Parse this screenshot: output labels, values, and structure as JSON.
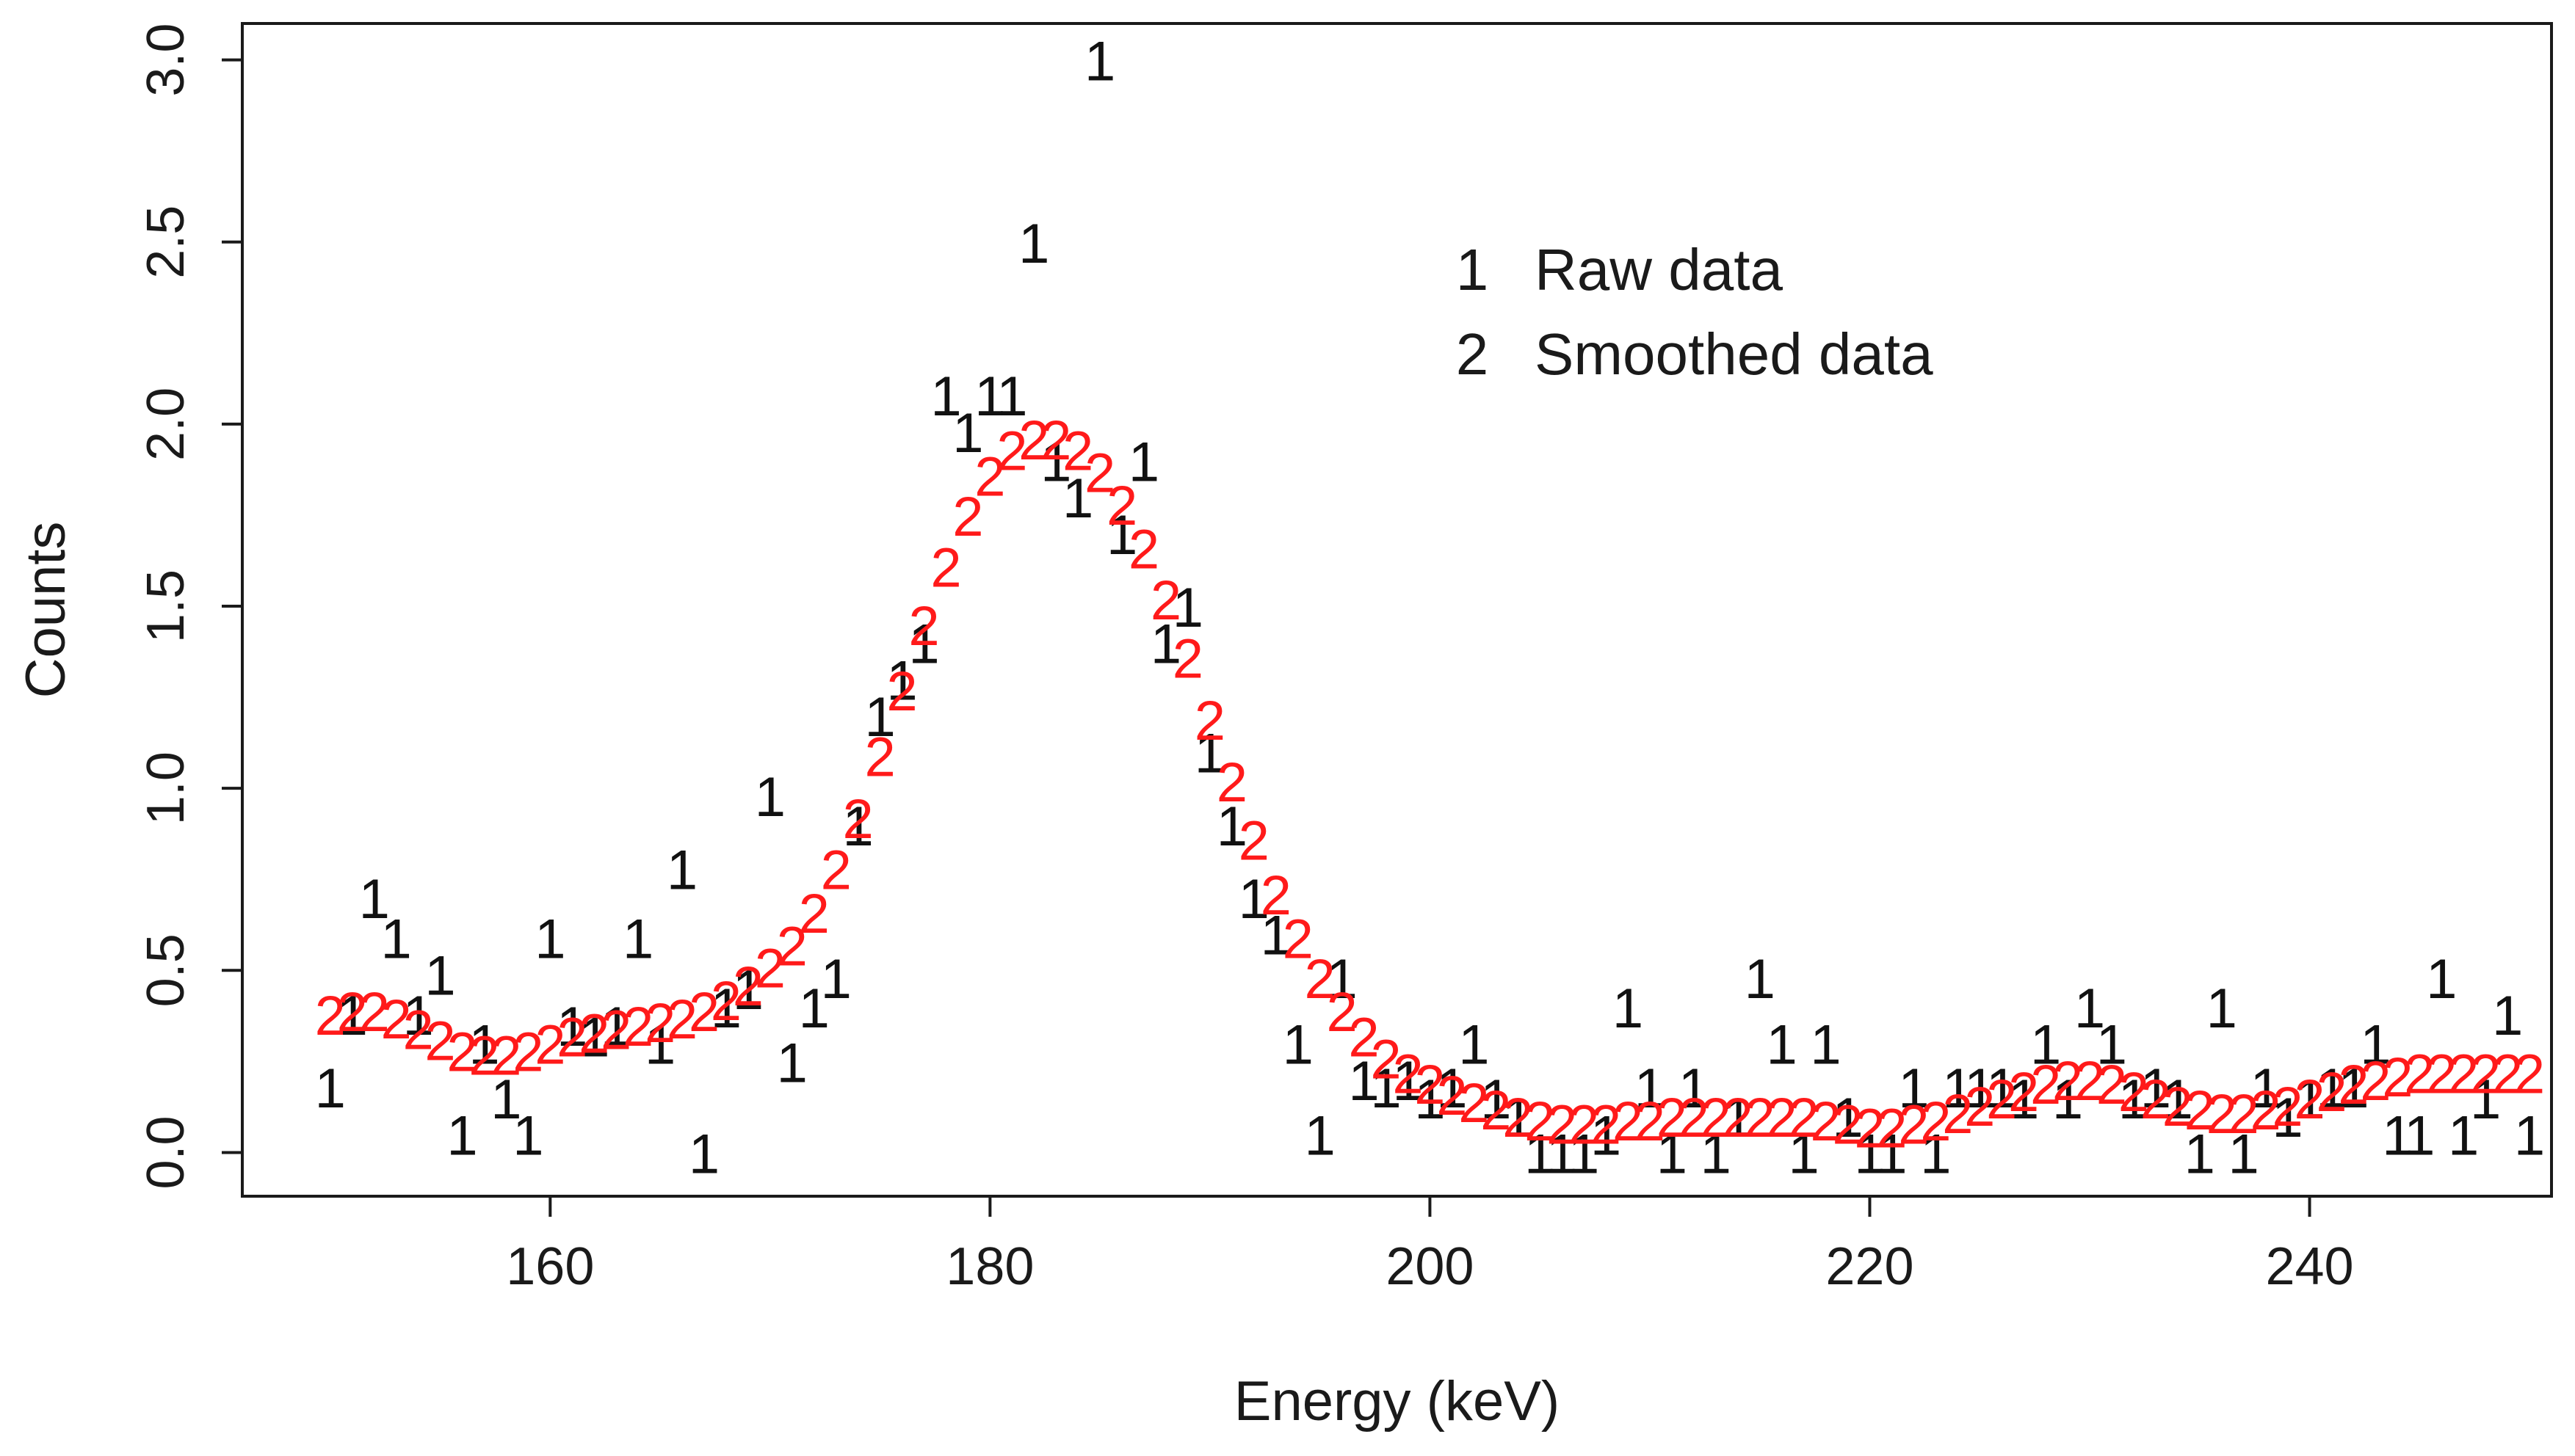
{
  "chart_data": {
    "type": "scatter",
    "title": "",
    "xlabel": "Energy (keV)",
    "ylabel": "Counts",
    "xlim": [
      146,
      251
    ],
    "ylim": [
      -0.12,
      3.1
    ],
    "xticks": [
      160,
      180,
      200,
      220,
      240
    ],
    "yticks": [
      0.0,
      0.5,
      1.0,
      1.5,
      2.0,
      2.5,
      3.0
    ],
    "grid": false,
    "legend_position": "top-right",
    "colors": {
      "raw": "#111111",
      "smoothed": "#ff1a1a",
      "axis": "#1a1a1a"
    },
    "series": [
      {
        "name": "Raw data",
        "symbol": "1",
        "x": [
          150,
          151,
          152,
          153,
          154,
          155,
          156,
          157,
          158,
          159,
          160,
          161,
          162,
          163,
          164,
          165,
          166,
          167,
          168,
          169,
          170,
          171,
          172,
          173,
          174,
          175,
          176,
          177,
          178,
          179,
          180,
          181,
          182,
          183,
          184,
          185,
          186,
          187,
          188,
          189,
          190,
          191,
          192,
          193,
          194,
          195,
          196,
          197,
          198,
          199,
          200,
          201,
          202,
          203,
          204,
          205,
          206,
          207,
          208,
          209,
          210,
          211,
          212,
          213,
          214,
          215,
          216,
          217,
          218,
          219,
          220,
          221,
          222,
          223,
          224,
          225,
          226,
          227,
          228,
          229,
          230,
          231,
          232,
          233,
          234,
          235,
          236,
          237,
          238,
          239,
          240,
          241,
          242,
          243,
          244,
          245,
          246,
          247,
          248,
          249,
          250
        ],
        "y": [
          0.18,
          0.38,
          0.7,
          0.59,
          0.38,
          0.49,
          0.05,
          0.3,
          0.15,
          0.05,
          0.59,
          0.35,
          0.32,
          0.35,
          0.59,
          0.3,
          0.78,
          0.0,
          0.4,
          0.45,
          0.98,
          0.25,
          0.4,
          0.48,
          0.9,
          1.2,
          1.3,
          1.4,
          2.08,
          1.98,
          2.08,
          2.08,
          2.5,
          1.9,
          1.8,
          3.0,
          1.7,
          1.9,
          1.4,
          1.5,
          1.1,
          0.9,
          0.7,
          0.6,
          0.3,
          0.05,
          0.48,
          0.2,
          0.18,
          0.2,
          0.15,
          0.18,
          0.3,
          0.15,
          0.1,
          0.0,
          0.0,
          0.0,
          0.05,
          0.4,
          0.18,
          0.0,
          0.18,
          0.0,
          0.1,
          0.48,
          0.3,
          0.0,
          0.3,
          0.1,
          0.0,
          0.0,
          0.18,
          0.0,
          0.18,
          0.18,
          0.18,
          0.15,
          0.3,
          0.15,
          0.4,
          0.3,
          0.15,
          0.18,
          0.15,
          0.0,
          0.4,
          0.0,
          0.18,
          0.1,
          0.15,
          0.18,
          0.18,
          0.3,
          0.05,
          0.05,
          0.48,
          0.05,
          0.15,
          0.38,
          0.05
        ]
      },
      {
        "name": "Smoothed data",
        "symbol": "2",
        "x": [
          150,
          151,
          152,
          153,
          154,
          155,
          156,
          157,
          158,
          159,
          160,
          161,
          162,
          163,
          164,
          165,
          166,
          167,
          168,
          169,
          170,
          171,
          172,
          173,
          174,
          175,
          176,
          177,
          178,
          179,
          180,
          181,
          182,
          183,
          184,
          185,
          186,
          187,
          188,
          189,
          190,
          191,
          192,
          193,
          194,
          195,
          196,
          197,
          198,
          199,
          200,
          201,
          202,
          203,
          204,
          205,
          206,
          207,
          208,
          209,
          210,
          211,
          212,
          213,
          214,
          215,
          216,
          217,
          218,
          219,
          220,
          221,
          222,
          223,
          224,
          225,
          226,
          227,
          228,
          229,
          230,
          231,
          232,
          233,
          234,
          235,
          236,
          237,
          238,
          239,
          240,
          241,
          242,
          243,
          244,
          245,
          246,
          247,
          248,
          249,
          250
        ],
        "y": [
          0.38,
          0.39,
          0.39,
          0.37,
          0.34,
          0.31,
          0.28,
          0.27,
          0.27,
          0.28,
          0.3,
          0.32,
          0.33,
          0.34,
          0.35,
          0.36,
          0.37,
          0.39,
          0.42,
          0.46,
          0.51,
          0.57,
          0.66,
          0.78,
          0.92,
          1.09,
          1.27,
          1.45,
          1.61,
          1.75,
          1.86,
          1.93,
          1.96,
          1.96,
          1.93,
          1.87,
          1.78,
          1.66,
          1.52,
          1.36,
          1.19,
          1.02,
          0.86,
          0.71,
          0.59,
          0.48,
          0.39,
          0.32,
          0.26,
          0.22,
          0.19,
          0.16,
          0.14,
          0.12,
          0.1,
          0.09,
          0.08,
          0.08,
          0.08,
          0.09,
          0.09,
          0.1,
          0.1,
          0.1,
          0.1,
          0.1,
          0.1,
          0.1,
          0.09,
          0.08,
          0.07,
          0.07,
          0.08,
          0.09,
          0.11,
          0.13,
          0.15,
          0.17,
          0.19,
          0.2,
          0.2,
          0.19,
          0.17,
          0.15,
          0.13,
          0.12,
          0.11,
          0.11,
          0.12,
          0.13,
          0.15,
          0.17,
          0.19,
          0.2,
          0.21,
          0.22,
          0.22,
          0.22,
          0.22,
          0.22,
          0.22
        ]
      }
    ]
  }
}
